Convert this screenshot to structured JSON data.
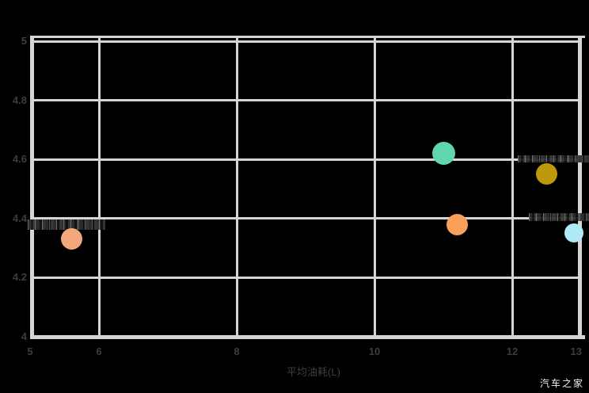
{
  "page": {
    "background": "#000000"
  },
  "watermark": {
    "text": "汽车之家",
    "color": "#f2f2f2"
  },
  "chart_data": {
    "type": "scatter",
    "title": "",
    "xlabel": "平均油耗(L)",
    "ylabel": "",
    "xlim": [
      5,
      13
    ],
    "ylim": [
      4,
      5
    ],
    "x_ticks": [
      "5",
      "6",
      "8",
      "10",
      "12",
      "13"
    ],
    "x_tick_values": [
      5,
      6,
      8,
      10,
      12,
      13
    ],
    "y_ticks": [
      "4",
      "4.2",
      "4.4",
      "4.6",
      "4.8",
      "5"
    ],
    "y_tick_values": [
      4,
      4.2,
      4.4,
      4.6,
      4.8,
      5
    ],
    "grid": true,
    "legend_position": "none",
    "gridline_color": "#d5d5d5",
    "axis_label_color": "#3d3d3d",
    "plot_background": "#000000",
    "point_labels_illegible": true,
    "points": [
      {
        "x": 5.6,
        "y": 4.33,
        "radius": 13.5,
        "color": "#f2a87a"
      },
      {
        "x": 11.0,
        "y": 4.62,
        "radius": 14.5,
        "color": "#5fd6b0"
      },
      {
        "x": 11.2,
        "y": 4.38,
        "radius": 13.5,
        "color": "#f9a05a"
      },
      {
        "x": 12.5,
        "y": 4.55,
        "radius": 13.5,
        "color": "#bd9a0b"
      },
      {
        "x": 12.9,
        "y": 4.35,
        "radius": 12,
        "color": "#b0eaf8"
      }
    ]
  }
}
